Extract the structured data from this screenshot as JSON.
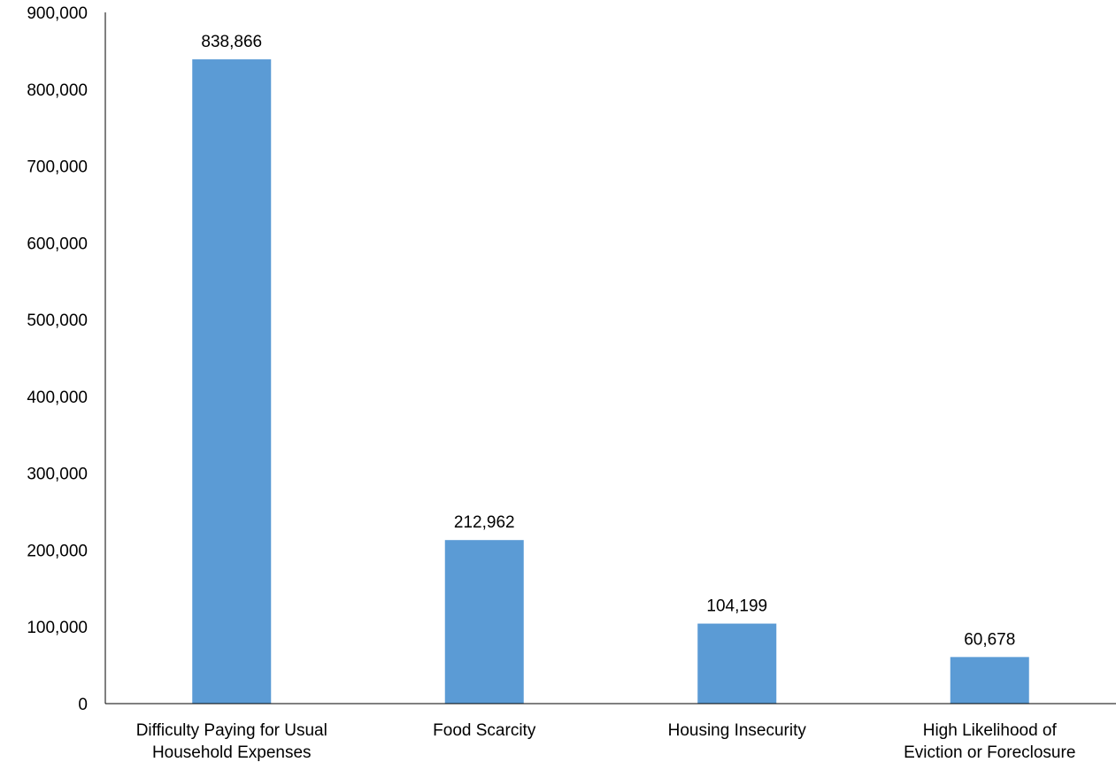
{
  "chart_data": {
    "type": "bar",
    "title": "",
    "xlabel": "",
    "ylabel": "",
    "categories": [
      [
        "Difficulty Paying for Usual",
        "Household Expenses"
      ],
      [
        "Food Scarcity"
      ],
      [
        "Housing Insecurity"
      ],
      [
        "High Likelihood of",
        "Eviction or Foreclosure"
      ]
    ],
    "values": [
      838866,
      212962,
      104199,
      60678
    ],
    "data_labels": [
      "838,866",
      "212,962",
      "104,199",
      "60,678"
    ],
    "ylim": [
      0,
      900000
    ],
    "y_ticks": [
      {
        "value": 0,
        "label": "0"
      },
      {
        "value": 100000,
        "label": "100,000"
      },
      {
        "value": 200000,
        "label": "200,000"
      },
      {
        "value": 300000,
        "label": "300,000"
      },
      {
        "value": 400000,
        "label": "400,000"
      },
      {
        "value": 500000,
        "label": "500,000"
      },
      {
        "value": 600000,
        "label": "600,000"
      },
      {
        "value": 700000,
        "label": "700,000"
      },
      {
        "value": 800000,
        "label": "800,000"
      },
      {
        "value": 900000,
        "label": "900,000"
      }
    ],
    "grid": false,
    "legend": "none",
    "bar_color": "#5B9BD5",
    "axis_color": "#000000"
  }
}
